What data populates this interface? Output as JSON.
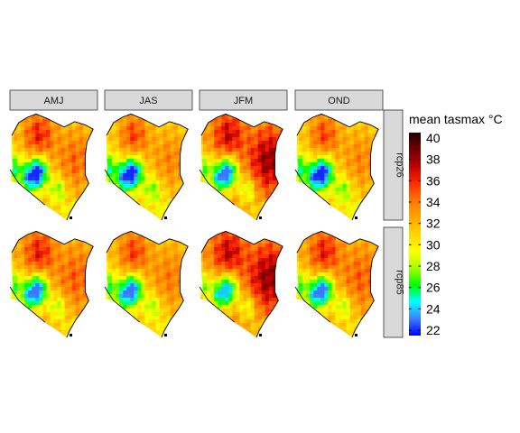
{
  "chart_data": {
    "type": "heatmap",
    "title": "",
    "facet_columns": [
      "AMJ",
      "JAS",
      "JFM",
      "OND"
    ],
    "facet_rows": [
      "rcp26",
      "rcp85"
    ],
    "legend": {
      "title": "mean tasmax °C",
      "ticks": [
        40,
        38,
        36,
        34,
        32,
        30,
        28,
        26,
        24,
        22
      ],
      "range": [
        21.5,
        40.5
      ],
      "colors": [
        "#0000ff",
        "#3f7fff",
        "#00ffff",
        "#00ff00",
        "#a6ff00",
        "#ffff00",
        "#ffd500",
        "#ffa500",
        "#ff7700",
        "#ff2a00",
        "#c00000",
        "#700000",
        "#2a0000"
      ],
      "placement": "right"
    },
    "panels": [
      {
        "season": "AMJ",
        "scenario": "rcp26",
        "min": 22,
        "max": 39
      },
      {
        "season": "JAS",
        "scenario": "rcp26",
        "min": 22,
        "max": 38
      },
      {
        "season": "JFM",
        "scenario": "rcp26",
        "min": 23,
        "max": 40
      },
      {
        "season": "OND",
        "scenario": "rcp26",
        "min": 22,
        "max": 38
      },
      {
        "season": "AMJ",
        "scenario": "rcp85",
        "min": 23,
        "max": 39
      },
      {
        "season": "JAS",
        "scenario": "rcp85",
        "min": 23,
        "max": 38
      },
      {
        "season": "JFM",
        "scenario": "rcp85",
        "min": 24,
        "max": 40
      },
      {
        "season": "OND",
        "scenario": "rcp85",
        "min": 23,
        "max": 39
      }
    ]
  }
}
